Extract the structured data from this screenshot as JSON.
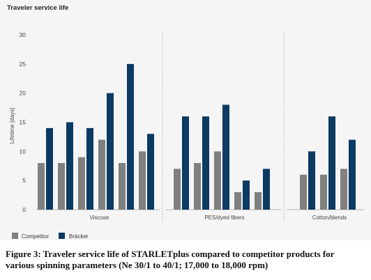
{
  "chart_data": {
    "type": "bar",
    "title": "Traveler service life",
    "ylabel": "Lifetime [days]",
    "ylim": [
      0,
      30
    ],
    "yticks": [
      0,
      5,
      10,
      15,
      20,
      25,
      30
    ],
    "groups": [
      {
        "label": "Viscose",
        "competitor": [
          8,
          8,
          9,
          12,
          8,
          10
        ],
        "bracker": [
          14,
          15,
          14,
          20,
          25,
          13
        ]
      },
      {
        "label": "PES/dyed fibers",
        "competitor": [
          7,
          8,
          10,
          3,
          3
        ],
        "bracker": [
          16,
          16,
          18,
          5,
          7
        ]
      },
      {
        "label": "Cotton/blends",
        "competitor": [
          6,
          6,
          7
        ],
        "bracker": [
          10,
          16,
          12
        ]
      }
    ],
    "series": [
      {
        "name": "Competitor",
        "color": "#808080"
      },
      {
        "name": "Bräcker",
        "color": "#0b3a63"
      }
    ],
    "legend": "bottom-left",
    "grid": "group separators dotted"
  },
  "caption": {
    "line1": "Figure 3: Traveler service life of STARLETplus compared to competitor products for",
    "line2": "various spinning parameters (Ne 30/1 to 40/1; 17,000 to 18,000 rpm)"
  }
}
